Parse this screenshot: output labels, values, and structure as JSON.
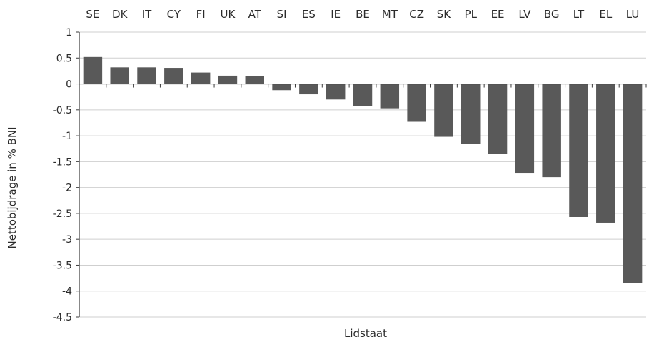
{
  "chart_data": {
    "type": "bar",
    "title": "",
    "xlabel": "Lidstaat",
    "ylabel": "Nettobijdrage in % BNI",
    "categories": [
      "SE",
      "DK",
      "IT",
      "CY",
      "FI",
      "UK",
      "AT",
      "SI",
      "ES",
      "IE",
      "BE",
      "MT",
      "CZ",
      "SK",
      "PL",
      "EE",
      "LV",
      "BG",
      "LT",
      "EL",
      "LU"
    ],
    "values": [
      0.52,
      0.32,
      0.32,
      0.31,
      0.22,
      0.16,
      0.15,
      -0.12,
      -0.2,
      -0.3,
      -0.42,
      -0.47,
      -0.73,
      -1.02,
      -1.16,
      -1.35,
      -1.73,
      -1.8,
      -2.57,
      -2.68,
      -3.85
    ],
    "ylim": [
      -4.5,
      1
    ],
    "yticks": [
      "1",
      "0.5",
      "0",
      "-0.5",
      "-1",
      "-1.5",
      "-2",
      "-2.5",
      "-3",
      "-3.5",
      "-4",
      "-4.5"
    ],
    "grid": true,
    "legend": "none",
    "bar_color": "#595959",
    "grid_color": "#cfcfcf",
    "axis_color": "#3a3a3a",
    "category_label_position": "top"
  }
}
